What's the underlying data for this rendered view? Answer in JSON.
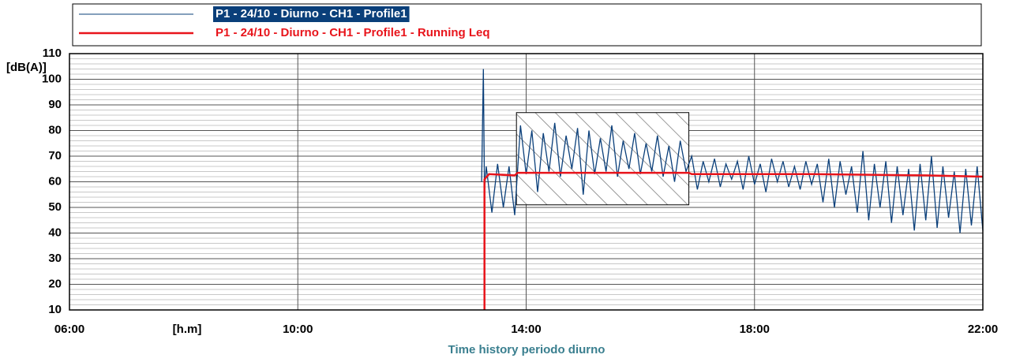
{
  "chart_data": {
    "type": "line",
    "title": "Time history periodo diurno",
    "x_label": "[h.m]",
    "y_label": "[dB(A)]",
    "xlim": [
      6,
      22
    ],
    "xticks": [
      {
        "value": 6,
        "label": "06:00"
      },
      {
        "value": 10,
        "label": "10:00"
      },
      {
        "value": 14,
        "label": "14:00"
      },
      {
        "value": 18,
        "label": "18:00"
      },
      {
        "value": 22,
        "label": "22:00"
      }
    ],
    "ylim": [
      10,
      110
    ],
    "yticks": [
      10,
      20,
      30,
      40,
      50,
      60,
      70,
      80,
      90,
      100,
      110
    ],
    "y_minor_ticks": [
      12,
      14,
      16,
      18,
      22,
      24,
      26,
      28,
      32,
      34,
      36,
      38,
      42,
      44,
      46,
      48,
      52,
      54,
      56,
      58,
      62,
      64,
      66,
      68,
      72,
      74,
      76,
      78,
      82,
      84,
      86,
      88,
      92,
      94,
      96,
      98,
      102,
      104,
      106,
      108
    ],
    "grid": true,
    "masked_region": {
      "x": [
        13.83,
        16.85
      ],
      "y": [
        51,
        87
      ]
    },
    "series": [
      {
        "name": "P1 - 24/10 - Diurno - CH1 - Profile1",
        "color": "#0a3f7a",
        "x": [
          13.22,
          13.25,
          13.27,
          13.3,
          13.4,
          13.5,
          13.6,
          13.7,
          13.8,
          13.9,
          14.0,
          14.1,
          14.2,
          14.3,
          14.4,
          14.5,
          14.6,
          14.7,
          14.8,
          14.9,
          15.0,
          15.1,
          15.2,
          15.3,
          15.4,
          15.5,
          15.6,
          15.7,
          15.8,
          15.9,
          16.0,
          16.1,
          16.2,
          16.3,
          16.4,
          16.5,
          16.6,
          16.7,
          16.8,
          16.9,
          17.0,
          17.1,
          17.2,
          17.3,
          17.4,
          17.5,
          17.6,
          17.7,
          17.8,
          17.9,
          18.0,
          18.1,
          18.2,
          18.3,
          18.4,
          18.5,
          18.6,
          18.7,
          18.8,
          18.9,
          19.0,
          19.1,
          19.2,
          19.3,
          19.4,
          19.5,
          19.6,
          19.7,
          19.8,
          19.9,
          20.0,
          20.1,
          20.2,
          20.3,
          20.4,
          20.5,
          20.6,
          20.7,
          20.8,
          20.9,
          21.0,
          21.1,
          21.2,
          21.3,
          21.4,
          21.5,
          21.6,
          21.7,
          21.8,
          21.9,
          22.0
        ],
        "values": [
          60,
          104,
          56,
          66,
          48,
          67,
          50,
          66,
          47,
          82,
          63,
          80,
          56,
          79,
          64,
          83,
          62,
          78,
          65,
          81,
          55,
          80,
          63,
          77,
          64,
          82,
          62,
          76,
          65,
          79,
          63,
          75,
          64,
          78,
          62,
          74,
          60,
          76,
          64,
          70,
          57,
          68,
          60,
          69,
          58,
          67,
          61,
          68,
          57,
          70,
          59,
          67,
          56,
          69,
          60,
          68,
          58,
          66,
          57,
          68,
          59,
          67,
          52,
          69,
          50,
          68,
          55,
          66,
          48,
          72,
          45,
          67,
          50,
          68,
          44,
          66,
          47,
          65,
          41,
          67,
          45,
          70,
          42,
          66,
          46,
          64,
          40,
          65,
          43,
          66,
          41
        ]
      },
      {
        "name": "P1 - 24/10 - Diurno - CH1 - Profile1 - Running Leq",
        "color": "#e8141b",
        "x": [
          13.27,
          13.27,
          13.35,
          13.8,
          13.85,
          16.85,
          16.9,
          19,
          21,
          22
        ],
        "values": [
          10,
          61,
          63,
          62.5,
          63.5,
          63.5,
          63,
          63,
          62.5,
          62
        ]
      }
    ]
  }
}
